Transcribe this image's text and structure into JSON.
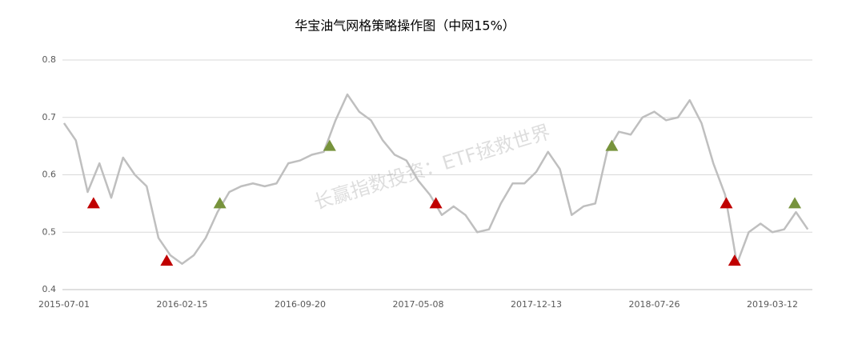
{
  "chart_data": {
    "type": "line",
    "title": "华宝油气网格策略操作图（中网15%）",
    "watermark": "长赢指数投资：ETF拯救世界",
    "categories": [
      "2015-07-01",
      null,
      null,
      null,
      null,
      null,
      null,
      null,
      null,
      null,
      "2016-02-15",
      null,
      null,
      null,
      null,
      null,
      null,
      null,
      null,
      null,
      "2016-09-20",
      null,
      null,
      null,
      null,
      null,
      null,
      null,
      null,
      null,
      "2017-05-08",
      null,
      null,
      null,
      null,
      null,
      null,
      null,
      null,
      null,
      "2017-12-13",
      null,
      null,
      null,
      null,
      null,
      null,
      null,
      null,
      null,
      "2018-07-26",
      null,
      null,
      null,
      null,
      null,
      null,
      null,
      null,
      null,
      "2019-03-12",
      null,
      null,
      null
    ],
    "series": [
      {
        "color": "#bfbfbf",
        "values": [
          0.69,
          0.66,
          0.57,
          0.62,
          0.56,
          0.63,
          0.6,
          0.58,
          0.49,
          0.46,
          0.445,
          0.46,
          0.49,
          0.535,
          0.57,
          0.58,
          0.585,
          0.58,
          0.585,
          0.62,
          0.625,
          0.635,
          0.64,
          0.695,
          0.74,
          0.71,
          0.695,
          0.66,
          0.635,
          0.625,
          0.59,
          0.565,
          0.53,
          0.545,
          0.53,
          0.5,
          0.505,
          0.55,
          0.585,
          0.585,
          0.605,
          0.64,
          0.61,
          0.53,
          0.545,
          0.55,
          0.64,
          0.675,
          0.67,
          0.7,
          0.71,
          0.695,
          0.7,
          0.73,
          0.69,
          0.62,
          0.565,
          0.445,
          0.5,
          0.515,
          0.5,
          0.505,
          0.535,
          0.505
        ]
      }
    ],
    "markers": [
      {
        "color": "#c00000",
        "points": [
          {
            "x": 2.5,
            "y": 0.55
          },
          {
            "x": 8.7,
            "y": 0.45
          },
          {
            "x": 31.5,
            "y": 0.55
          },
          {
            "x": 56.1,
            "y": 0.55
          },
          {
            "x": 56.8,
            "y": 0.45
          }
        ]
      },
      {
        "color": "#77933c",
        "points": [
          {
            "x": 13.2,
            "y": 0.55
          },
          {
            "x": 22.5,
            "y": 0.65
          },
          {
            "x": 46.4,
            "y": 0.65
          },
          {
            "x": 61.9,
            "y": 0.55
          }
        ]
      }
    ],
    "ylim": [
      0.4,
      0.8
    ],
    "yticks": [
      0.4,
      0.5,
      0.6,
      0.7,
      0.8
    ],
    "grid": true
  }
}
